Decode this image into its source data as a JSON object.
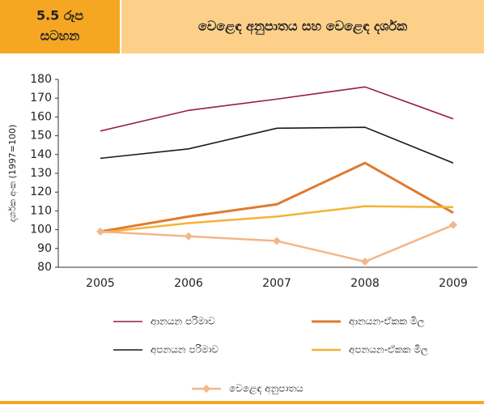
{
  "chart_data": {
    "type": "line",
    "figure_label": [
      "5.5 රූප",
      "සටහන"
    ],
    "title": "වෙළෙඳ අනුපාතය සහ වෙළෙඳ දර්ශක",
    "ylabel": "දර්ශක අංක (1997=100)",
    "categories": [
      "2005",
      "2006",
      "2007",
      "2008",
      "2009"
    ],
    "ylim": [
      80,
      180
    ],
    "yticks": [
      80,
      90,
      100,
      110,
      120,
      130,
      140,
      150,
      160,
      170,
      180
    ],
    "grid": false,
    "series": [
      {
        "name": "ආනයන පරිමාව",
        "color": "#9b1b3a",
        "values": [
          152.5,
          163.5,
          169.5,
          176,
          159
        ]
      },
      {
        "name": "ආනයන-ඒකක මිල",
        "color": "#e07b2e",
        "values": [
          99,
          107,
          113.5,
          135.5,
          109
        ]
      },
      {
        "name": "අපනයන පරිමාව",
        "color": "#1a1a1a",
        "values": [
          138,
          143,
          154,
          154.5,
          135.5
        ]
      },
      {
        "name": "අපනයන-ඒකක මිල",
        "color": "#f5b335",
        "values": [
          98.5,
          103.5,
          107,
          112.5,
          112
        ]
      },
      {
        "name": "වෙළෙඳ අනුපාතය",
        "color": "#f4b68a",
        "values": [
          99,
          96.5,
          94,
          83,
          102.5
        ],
        "marker": "diamond"
      }
    ]
  }
}
